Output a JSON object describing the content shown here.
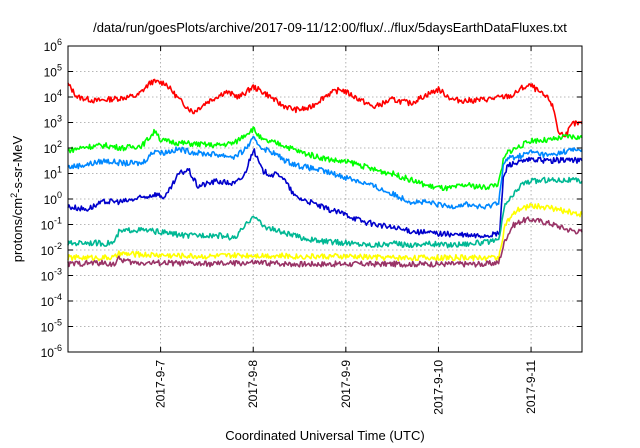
{
  "chart_data": {
    "type": "line",
    "title": "/data/run/goesPlots/archive/2017-09-11/12:00/flux/../flux/5daysEarthDataFluxes.txt",
    "xlabel": "Coordinated Universal Time (UTC)",
    "ylabel": "protons/cm²-s-sr-MeV",
    "ylabel_parts": {
      "pre": "protons/cm",
      "sup": "2",
      "post": "-s-sr-MeV"
    },
    "yscale": "log",
    "ylim_exp": [
      -6,
      6
    ],
    "y_ticks": [
      {
        "base": "10",
        "exp": "-6"
      },
      {
        "base": "10",
        "exp": "-5"
      },
      {
        "base": "10",
        "exp": "-4"
      },
      {
        "base": "10",
        "exp": "-3"
      },
      {
        "base": "10",
        "exp": "-2"
      },
      {
        "base": "10",
        "exp": "-1"
      },
      {
        "base": "10",
        "exp": "0"
      },
      {
        "base": "10",
        "exp": "1"
      },
      {
        "base": "10",
        "exp": "2"
      },
      {
        "base": "10",
        "exp": "3"
      },
      {
        "base": "10",
        "exp": "4"
      },
      {
        "base": "10",
        "exp": "5"
      },
      {
        "base": "10",
        "exp": "6"
      }
    ],
    "xlim": [
      6.0,
      11.55
    ],
    "x_ticks": [
      {
        "label": "2017-9-7",
        "x": 7
      },
      {
        "label": "2017-9-8",
        "x": 8
      },
      {
        "label": "2017-9-9",
        "x": 9
      },
      {
        "label": "2017-9-10",
        "x": 10
      },
      {
        "label": "2017-9-11",
        "x": 11
      }
    ],
    "grid": true,
    "series": [
      {
        "color": "#ff0000",
        "points": [
          [
            6.0,
            4.5
          ],
          [
            6.1,
            4.0
          ],
          [
            6.3,
            3.85
          ],
          [
            6.55,
            3.95
          ],
          [
            6.75,
            4.05
          ],
          [
            6.9,
            4.6
          ],
          [
            7.05,
            4.55
          ],
          [
            7.2,
            3.9
          ],
          [
            7.35,
            3.4
          ],
          [
            7.5,
            3.8
          ],
          [
            7.7,
            4.2
          ],
          [
            7.85,
            4.0
          ],
          [
            8.0,
            4.4
          ],
          [
            8.15,
            4.1
          ],
          [
            8.3,
            3.7
          ],
          [
            8.45,
            3.5
          ],
          [
            8.6,
            3.55
          ],
          [
            8.8,
            4.1
          ],
          [
            8.95,
            4.3
          ],
          [
            9.1,
            4.0
          ],
          [
            9.3,
            3.6
          ],
          [
            9.5,
            3.9
          ],
          [
            9.7,
            3.75
          ],
          [
            9.85,
            4.05
          ],
          [
            10.0,
            4.3
          ],
          [
            10.15,
            3.9
          ],
          [
            10.3,
            3.85
          ],
          [
            10.5,
            3.9
          ],
          [
            10.7,
            4.0
          ],
          [
            10.8,
            4.05
          ],
          [
            10.9,
            4.35
          ],
          [
            11.0,
            4.45
          ],
          [
            11.1,
            4.15
          ],
          [
            11.2,
            3.9
          ],
          [
            11.25,
            3.45
          ],
          [
            11.3,
            2.55
          ],
          [
            11.38,
            2.55
          ],
          [
            11.45,
            2.95
          ],
          [
            11.55,
            2.95
          ]
        ]
      },
      {
        "color": "#00ff00",
        "points": [
          [
            6.0,
            1.9
          ],
          [
            6.2,
            2.05
          ],
          [
            6.4,
            2.1
          ],
          [
            6.6,
            2.0
          ],
          [
            6.8,
            2.1
          ],
          [
            6.95,
            2.7
          ],
          [
            7.0,
            2.3
          ],
          [
            7.2,
            2.2
          ],
          [
            7.4,
            2.15
          ],
          [
            7.6,
            2.1
          ],
          [
            7.8,
            2.2
          ],
          [
            7.9,
            2.5
          ],
          [
            8.0,
            2.75
          ],
          [
            8.1,
            2.3
          ],
          [
            8.3,
            2.15
          ],
          [
            8.5,
            1.85
          ],
          [
            8.7,
            1.65
          ],
          [
            8.9,
            1.5
          ],
          [
            9.1,
            1.4
          ],
          [
            9.3,
            1.15
          ],
          [
            9.5,
            1.0
          ],
          [
            9.7,
            0.75
          ],
          [
            9.9,
            0.5
          ],
          [
            10.1,
            0.4
          ],
          [
            10.3,
            0.55
          ],
          [
            10.5,
            0.45
          ],
          [
            10.65,
            0.6
          ],
          [
            10.7,
            1.5
          ],
          [
            10.75,
            1.85
          ],
          [
            10.9,
            2.1
          ],
          [
            11.0,
            2.3
          ],
          [
            11.2,
            2.3
          ],
          [
            11.4,
            2.45
          ],
          [
            11.55,
            2.4
          ]
        ]
      },
      {
        "color": "#0088ff",
        "points": [
          [
            6.0,
            1.25
          ],
          [
            6.2,
            1.35
          ],
          [
            6.4,
            1.5
          ],
          [
            6.6,
            1.4
          ],
          [
            6.8,
            1.4
          ],
          [
            6.95,
            1.95
          ],
          [
            7.0,
            1.8
          ],
          [
            7.2,
            1.95
          ],
          [
            7.4,
            1.8
          ],
          [
            7.6,
            1.75
          ],
          [
            7.8,
            1.65
          ],
          [
            7.9,
            1.9
          ],
          [
            8.0,
            2.35
          ],
          [
            8.1,
            2.0
          ],
          [
            8.2,
            1.85
          ],
          [
            8.35,
            1.5
          ],
          [
            8.5,
            1.3
          ],
          [
            8.7,
            1.15
          ],
          [
            8.9,
            0.95
          ],
          [
            9.1,
            0.75
          ],
          [
            9.3,
            0.5
          ],
          [
            9.5,
            0.2
          ],
          [
            9.7,
            -0.1
          ],
          [
            9.9,
            -0.15
          ],
          [
            10.1,
            -0.3
          ],
          [
            10.3,
            -0.2
          ],
          [
            10.5,
            -0.35
          ],
          [
            10.65,
            -0.1
          ],
          [
            10.7,
            1.3
          ],
          [
            10.75,
            1.6
          ],
          [
            10.9,
            1.7
          ],
          [
            11.0,
            1.85
          ],
          [
            11.2,
            1.7
          ],
          [
            11.4,
            1.9
          ],
          [
            11.55,
            1.95
          ]
        ]
      },
      {
        "color": "#0000cc",
        "points": [
          [
            6.0,
            -0.3
          ],
          [
            6.2,
            -0.4
          ],
          [
            6.4,
            -0.1
          ],
          [
            6.6,
            -0.1
          ],
          [
            6.8,
            0.05
          ],
          [
            6.95,
            0.2
          ],
          [
            7.05,
            0.05
          ],
          [
            7.2,
            1.0
          ],
          [
            7.3,
            1.15
          ],
          [
            7.4,
            0.5
          ],
          [
            7.6,
            0.7
          ],
          [
            7.8,
            0.6
          ],
          [
            7.9,
            0.9
          ],
          [
            8.0,
            1.95
          ],
          [
            8.1,
            1.1
          ],
          [
            8.2,
            0.95
          ],
          [
            8.3,
            0.95
          ],
          [
            8.45,
            0.1
          ],
          [
            8.6,
            -0.1
          ],
          [
            8.8,
            -0.4
          ],
          [
            9.0,
            -0.6
          ],
          [
            9.2,
            -0.9
          ],
          [
            9.4,
            -1.05
          ],
          [
            9.6,
            -1.2
          ],
          [
            9.8,
            -1.3
          ],
          [
            10.0,
            -1.35
          ],
          [
            10.2,
            -1.4
          ],
          [
            10.4,
            -1.45
          ],
          [
            10.6,
            -1.4
          ],
          [
            10.66,
            -1.35
          ],
          [
            10.7,
            0.8
          ],
          [
            10.75,
            1.35
          ],
          [
            10.9,
            1.45
          ],
          [
            11.0,
            1.55
          ],
          [
            11.2,
            1.5
          ],
          [
            11.4,
            1.55
          ],
          [
            11.55,
            1.5
          ]
        ]
      },
      {
        "color": "#00b894",
        "points": [
          [
            6.0,
            -1.75
          ],
          [
            6.2,
            -1.7
          ],
          [
            6.4,
            -1.75
          ],
          [
            6.5,
            -1.7
          ],
          [
            6.55,
            -1.3
          ],
          [
            6.7,
            -1.2
          ],
          [
            6.9,
            -1.25
          ],
          [
            7.1,
            -1.35
          ],
          [
            7.3,
            -1.45
          ],
          [
            7.5,
            -1.4
          ],
          [
            7.7,
            -1.45
          ],
          [
            7.8,
            -1.55
          ],
          [
            7.95,
            -0.9
          ],
          [
            8.0,
            -0.6
          ],
          [
            8.1,
            -1.05
          ],
          [
            8.3,
            -1.3
          ],
          [
            8.5,
            -1.5
          ],
          [
            8.7,
            -1.65
          ],
          [
            8.9,
            -1.7
          ],
          [
            9.1,
            -1.75
          ],
          [
            9.3,
            -1.8
          ],
          [
            9.5,
            -1.75
          ],
          [
            9.7,
            -1.8
          ],
          [
            9.9,
            -1.75
          ],
          [
            10.1,
            -1.8
          ],
          [
            10.3,
            -1.75
          ],
          [
            10.5,
            -1.7
          ],
          [
            10.65,
            -1.65
          ],
          [
            10.72,
            -0.2
          ],
          [
            10.8,
            0.1
          ],
          [
            10.9,
            0.6
          ],
          [
            11.0,
            0.7
          ],
          [
            11.2,
            0.75
          ],
          [
            11.4,
            0.75
          ],
          [
            11.55,
            0.7
          ]
        ]
      },
      {
        "color": "#ffff00",
        "points": [
          [
            6.0,
            -2.3
          ],
          [
            6.5,
            -2.3
          ],
          [
            6.55,
            -2.15
          ],
          [
            7.0,
            -2.2
          ],
          [
            7.5,
            -2.25
          ],
          [
            8.0,
            -2.2
          ],
          [
            8.5,
            -2.25
          ],
          [
            9.0,
            -2.25
          ],
          [
            9.5,
            -2.3
          ],
          [
            10.0,
            -2.3
          ],
          [
            10.5,
            -2.3
          ],
          [
            10.65,
            -2.3
          ],
          [
            10.72,
            -1.0
          ],
          [
            10.85,
            -0.45
          ],
          [
            11.0,
            -0.25
          ],
          [
            11.2,
            -0.35
          ],
          [
            11.4,
            -0.5
          ],
          [
            11.55,
            -0.6
          ]
        ]
      },
      {
        "color": "#993366",
        "points": [
          [
            6.0,
            -2.55
          ],
          [
            6.3,
            -2.5
          ],
          [
            6.5,
            -2.55
          ],
          [
            6.55,
            -2.35
          ],
          [
            6.7,
            -2.5
          ],
          [
            7.0,
            -2.5
          ],
          [
            7.5,
            -2.55
          ],
          [
            8.0,
            -2.5
          ],
          [
            8.5,
            -2.55
          ],
          [
            9.0,
            -2.55
          ],
          [
            9.5,
            -2.55
          ],
          [
            10.0,
            -2.55
          ],
          [
            10.5,
            -2.55
          ],
          [
            10.65,
            -2.5
          ],
          [
            10.72,
            -1.6
          ],
          [
            10.8,
            -1.05
          ],
          [
            10.9,
            -0.85
          ],
          [
            11.0,
            -0.8
          ],
          [
            11.2,
            -0.95
          ],
          [
            11.4,
            -1.2
          ],
          [
            11.55,
            -1.3
          ]
        ]
      }
    ]
  }
}
